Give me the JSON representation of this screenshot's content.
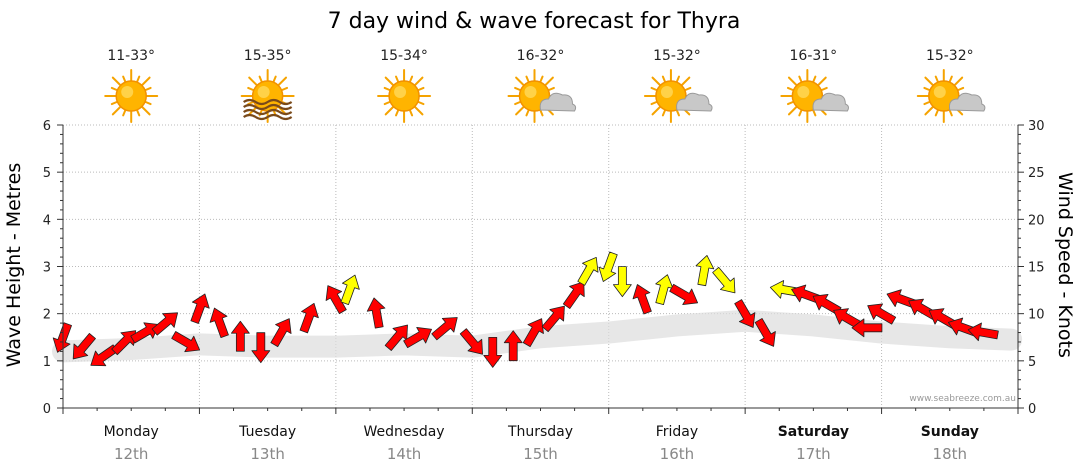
{
  "chart_data": {
    "type": "line",
    "title": "7 day wind & wave forecast for Thyra",
    "ylabel_left": "Wave Height - Metres",
    "ylabel_right": "Wind Speed - Knots",
    "ylim_left": [
      0,
      6
    ],
    "ylim_right": [
      0,
      30
    ],
    "yticks_left": [
      "0",
      "1",
      "2",
      "3",
      "4",
      "5",
      "6"
    ],
    "yticks_right": [
      "0",
      "5",
      "10",
      "15",
      "20",
      "25",
      "30"
    ],
    "grid": true,
    "days": [
      {
        "name": "Monday",
        "date": "12th",
        "temp": "11-33°",
        "weather": "sunny",
        "bold": false
      },
      {
        "name": "Tuesday",
        "date": "13th",
        "temp": "15-35°",
        "weather": "sunny-haze",
        "bold": false
      },
      {
        "name": "Wednesday",
        "date": "14th",
        "temp": "15-34°",
        "weather": "sunny",
        "bold": false
      },
      {
        "name": "Thursday",
        "date": "15th",
        "temp": "16-32°",
        "weather": "partly-cloudy",
        "bold": false
      },
      {
        "name": "Friday",
        "date": "16th",
        "temp": "15-32°",
        "weather": "partly-cloudy",
        "bold": false
      },
      {
        "name": "Saturday",
        "date": "17th",
        "temp": "16-31°",
        "weather": "partly-cloudy",
        "bold": true
      },
      {
        "name": "Sunday",
        "date": "18th",
        "temp": "15-32°",
        "weather": "partly-cloudy",
        "bold": true
      }
    ],
    "series": [
      {
        "name": "Wind Speed (knots)",
        "axis": "right",
        "points": [
          [
            0.0,
            7.5,
            200
          ],
          [
            0.15,
            6.5,
            220
          ],
          [
            0.3,
            5.5,
            235
          ],
          [
            0.45,
            7.0,
            45
          ],
          [
            0.6,
            8.0,
            60
          ],
          [
            0.75,
            9.0,
            50
          ],
          [
            0.9,
            7.0,
            120
          ],
          [
            1.0,
            10.5,
            20
          ],
          [
            1.15,
            9.0,
            340
          ],
          [
            1.3,
            7.5,
            0
          ],
          [
            1.45,
            6.5,
            180
          ],
          [
            1.6,
            8.0,
            30
          ],
          [
            1.8,
            9.5,
            20
          ],
          [
            2.0,
            11.5,
            330
          ],
          [
            2.1,
            12.5,
            20
          ],
          [
            2.3,
            10.0,
            350
          ],
          [
            2.45,
            7.5,
            40
          ],
          [
            2.6,
            7.5,
            60
          ],
          [
            2.8,
            8.5,
            50
          ],
          [
            3.0,
            7.0,
            140
          ],
          [
            3.15,
            6.0,
            180
          ],
          [
            3.3,
            6.5,
            0
          ],
          [
            3.45,
            8.0,
            30
          ],
          [
            3.6,
            9.5,
            40
          ],
          [
            3.75,
            12.0,
            35
          ],
          [
            3.85,
            14.5,
            30
          ],
          [
            4.0,
            15.0,
            200
          ],
          [
            4.1,
            13.5,
            180
          ],
          [
            4.25,
            11.5,
            340
          ],
          [
            4.4,
            12.5,
            15
          ],
          [
            4.55,
            12.0,
            120
          ],
          [
            4.7,
            14.5,
            10
          ],
          [
            4.85,
            13.5,
            140
          ],
          [
            5.0,
            10.0,
            150
          ],
          [
            5.15,
            8.0,
            150
          ],
          [
            5.3,
            12.5,
            280
          ],
          [
            5.45,
            12.0,
            290
          ],
          [
            5.6,
            11.0,
            300
          ],
          [
            5.75,
            9.5,
            300
          ],
          [
            5.9,
            8.5,
            270
          ],
          [
            6.0,
            10.0,
            300
          ],
          [
            6.15,
            11.5,
            290
          ],
          [
            6.3,
            10.5,
            300
          ],
          [
            6.45,
            9.5,
            300
          ],
          [
            6.6,
            8.5,
            290
          ],
          [
            6.75,
            8.0,
            280
          ]
        ]
      },
      {
        "name": "Wave Height (m)",
        "axis": "left",
        "points": [
          [
            0.0,
            1.2
          ],
          [
            0.5,
            1.25
          ],
          [
            1.0,
            1.35
          ],
          [
            1.5,
            1.3
          ],
          [
            2.0,
            1.3
          ],
          [
            2.5,
            1.35
          ],
          [
            3.0,
            1.3
          ],
          [
            3.5,
            1.5
          ],
          [
            4.0,
            1.6
          ],
          [
            4.5,
            1.75
          ],
          [
            5.0,
            1.85
          ],
          [
            5.5,
            1.75
          ],
          [
            6.0,
            1.6
          ],
          [
            6.5,
            1.5
          ],
          [
            6.95,
            1.45
          ]
        ]
      }
    ],
    "credit": "www.seabreeze.com.au",
    "colors": {
      "wind_low": "#ff0000",
      "wind_high": "#ffff00",
      "swell": "#dddddd"
    }
  }
}
